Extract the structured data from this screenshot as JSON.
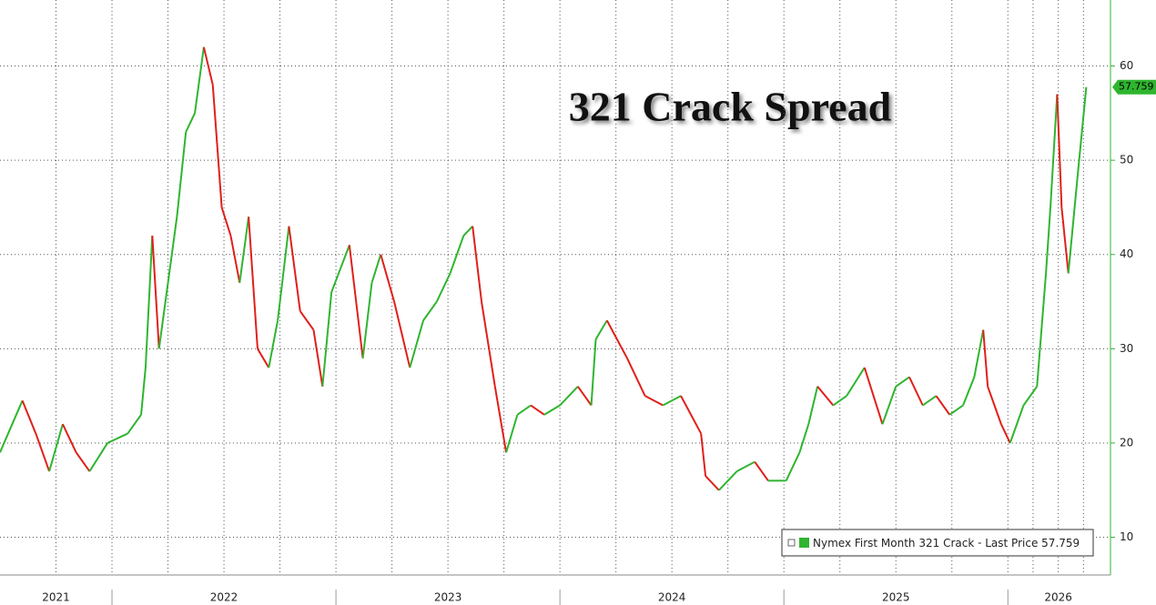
{
  "chart_data": {
    "type": "line",
    "title": "321 Crack Spread",
    "series": [
      {
        "name": "Nymex First Month 321 Crack",
        "color": "#2fb52f",
        "down_color": "#e0201a",
        "x": [
          2021.5,
          2021.6,
          2021.66,
          2021.72,
          2021.78,
          2021.84,
          2021.9,
          2021.98,
          2022.07,
          2022.13,
          2022.15,
          2022.18,
          2022.21,
          2022.25,
          2022.29,
          2022.33,
          2022.37,
          2022.41,
          2022.45,
          2022.49,
          2022.53,
          2022.57,
          2022.61,
          2022.65,
          2022.7,
          2022.74,
          2022.79,
          2022.84,
          2022.9,
          2022.94,
          2022.98,
          2023.06,
          2023.12,
          2023.16,
          2023.2,
          2023.26,
          2023.33,
          2023.39,
          2023.45,
          2023.51,
          2023.57,
          2023.61,
          2023.65,
          2023.71,
          2023.76,
          2023.81,
          2023.87,
          2023.93,
          2024.0,
          2024.08,
          2024.14,
          2024.16,
          2024.21,
          2024.3,
          2024.38,
          2024.46,
          2024.54,
          2024.63,
          2024.65,
          2024.71,
          2024.79,
          2024.87,
          2024.93,
          2025.01,
          2025.07,
          2025.11,
          2025.15,
          2025.22,
          2025.28,
          2025.36,
          2025.44,
          2025.5,
          2025.56,
          2025.62,
          2025.68,
          2025.74,
          2025.8,
          2025.85,
          2025.89,
          2025.91,
          2025.97,
          2026.01,
          2026.07,
          2026.13,
          2026.17,
          2026.19,
          2026.22,
          2026.24,
          2026.27,
          2026.31,
          2026.35
        ],
        "values": [
          19,
          24.5,
          21,
          17,
          22,
          19,
          17,
          20,
          21,
          23,
          28,
          42,
          30,
          37,
          44,
          53,
          55,
          62,
          58,
          45,
          42,
          37,
          44,
          30,
          28,
          33,
          43,
          34,
          32,
          26,
          36,
          41,
          29,
          37,
          40,
          35,
          28,
          33,
          35,
          38,
          42,
          43,
          35,
          26,
          19,
          23,
          24,
          23,
          24,
          26,
          24,
          31,
          33,
          29,
          25,
          24,
          25,
          21,
          16.5,
          15,
          17,
          18,
          16,
          16,
          19,
          22,
          26,
          24,
          25,
          28,
          22,
          26,
          27,
          24,
          25,
          23,
          24,
          27,
          32,
          26,
          22,
          20,
          24,
          26,
          38,
          45,
          57,
          45,
          38,
          48,
          57.759
        ]
      }
    ],
    "last_price_label": "Last Price",
    "xlim": [
      2021.5,
      2026.45
    ],
    "xticks": [
      {
        "value": 2021,
        "label": "2021"
      },
      {
        "value": 2022,
        "label": "2022"
      },
      {
        "value": 2023,
        "label": "2023"
      },
      {
        "value": 2024,
        "label": "2024"
      },
      {
        "value": 2025,
        "label": "2025"
      },
      {
        "value": 2026,
        "label": "2026"
      }
    ],
    "ylim": [
      6,
      67
    ],
    "yticks": [
      10,
      20,
      30,
      40,
      50,
      60
    ],
    "grid": true
  }
}
